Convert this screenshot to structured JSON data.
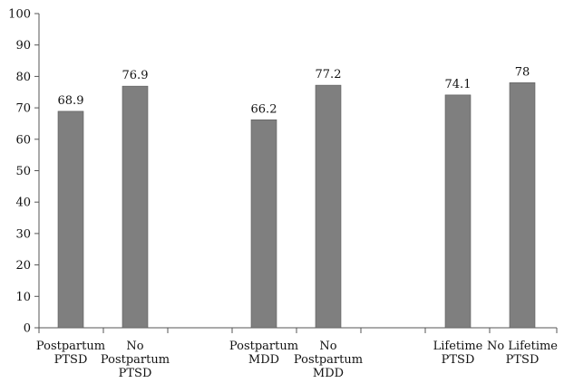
{
  "chart_data": {
    "type": "bar",
    "title": "",
    "xlabel": "",
    "ylabel": "",
    "ylim": [
      0,
      100
    ],
    "yticks": [
      0,
      10,
      20,
      30,
      40,
      50,
      60,
      70,
      80,
      90,
      100
    ],
    "grid": false,
    "legend": "none",
    "bar_color": "#7f7f7f",
    "groups": [
      {
        "bars": [
          {
            "label": [
              "Postpartum",
              "PTSD"
            ],
            "value": 68.9,
            "value_label": "68.9"
          },
          {
            "label": [
              "No",
              "Postpartum",
              "PTSD"
            ],
            "value": 76.9,
            "value_label": "76.9"
          }
        ]
      },
      {
        "bars": [
          {
            "label": [
              "Postpartum",
              "MDD"
            ],
            "value": 66.2,
            "value_label": "66.2"
          },
          {
            "label": [
              "No",
              "Postpartum",
              "MDD"
            ],
            "value": 77.2,
            "value_label": "77.2"
          }
        ]
      },
      {
        "bars": [
          {
            "label": [
              "Lifetime",
              "PTSD"
            ],
            "value": 74.1,
            "value_label": "74.1"
          },
          {
            "label": [
              "No Lifetime",
              "PTSD"
            ],
            "value": 78,
            "value_label": "78"
          }
        ]
      }
    ]
  }
}
